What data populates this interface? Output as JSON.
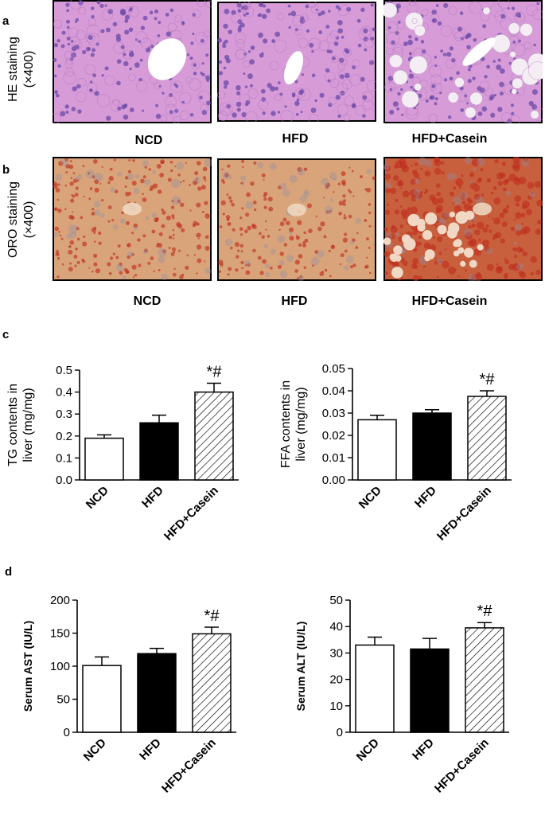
{
  "panels": {
    "a": {
      "letter": "a",
      "row_label_line1": "HE staining",
      "row_label_line2": "(×400)",
      "captions": [
        "NCD",
        "HFD",
        "HFD+Casein"
      ],
      "tissue_colors": {
        "background": "#d79bd8",
        "nuclei": "#6a49a8",
        "vessel": "#ffffff"
      }
    },
    "b": {
      "letter": "b",
      "row_label_line1": "ORO staining",
      "row_label_line2": "(×400)",
      "captions": [
        "NCD",
        "HFD",
        "HFD+Casein"
      ],
      "tissue_colors": {
        "background": "#d9a47a",
        "lipid": "#c0301e"
      }
    },
    "c": {
      "letter": "c"
    },
    "d": {
      "letter": "d"
    }
  },
  "chart_data": [
    {
      "type": "bar",
      "categories": [
        "NCD",
        "HFD",
        "HFD+Casein"
      ],
      "values": [
        0.19,
        0.26,
        0.4
      ],
      "errors": [
        0.015,
        0.035,
        0.04
      ],
      "ylabel_line1": "TG contents in",
      "ylabel_line2": "liver (mg/mg)",
      "ylim": [
        0,
        0.5
      ],
      "yticks": [
        "0.0",
        "0.1",
        "0.2",
        "0.3",
        "0.4",
        "0.5"
      ],
      "annotation": "*#",
      "fills": [
        "white",
        "black",
        "hatch"
      ]
    },
    {
      "type": "bar",
      "categories": [
        "NCD",
        "HFD",
        "HFD+Casein"
      ],
      "values": [
        0.027,
        0.03,
        0.0375
      ],
      "errors": [
        0.002,
        0.0015,
        0.0025
      ],
      "ylabel_line1": "FFA contents in",
      "ylabel_line2": "liver (mg/mg)",
      "ylim": [
        0,
        0.05
      ],
      "yticks": [
        "0.00",
        "0.01",
        "0.02",
        "0.03",
        "0.04",
        "0.05"
      ],
      "annotation": "*#",
      "fills": [
        "white",
        "black",
        "hatch"
      ]
    },
    {
      "type": "bar",
      "categories": [
        "NCD",
        "HFD",
        "HFD+Casein"
      ],
      "values": [
        101,
        119,
        149
      ],
      "errors": [
        13,
        8,
        10
      ],
      "ylabel_line1": "Serum AST (IU/L)",
      "ylabel_line2": "",
      "ylim": [
        0,
        200
      ],
      "yticks": [
        "0",
        "50",
        "100",
        "150",
        "200"
      ],
      "annotation": "*#",
      "fills": [
        "white",
        "black",
        "hatch"
      ]
    },
    {
      "type": "bar",
      "categories": [
        "NCD",
        "HFD",
        "HFD+Casein"
      ],
      "values": [
        33,
        31.5,
        39.5
      ],
      "errors": [
        3,
        4,
        2
      ],
      "ylabel_line1": "Serum ALT (IU/L)",
      "ylabel_line2": "",
      "ylim": [
        0,
        50
      ],
      "yticks": [
        "0",
        "10",
        "20",
        "30",
        "40",
        "50"
      ],
      "annotation": "*#",
      "fills": [
        "white",
        "black",
        "hatch"
      ]
    }
  ]
}
